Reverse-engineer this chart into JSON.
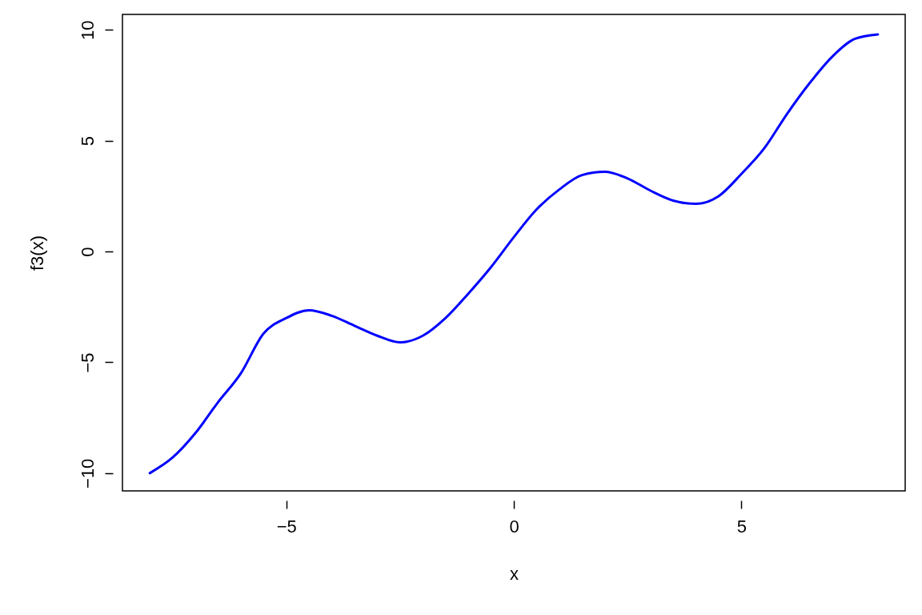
{
  "chart_data": {
    "type": "line",
    "xlabel": "x",
    "ylabel": "f3(x)",
    "x": [
      -8,
      -7.5,
      -7,
      -6.5,
      -6,
      -5.5,
      -5,
      -4.5,
      -4,
      -3.5,
      -3,
      -2.5,
      -2,
      -1.5,
      -1,
      -0.5,
      0,
      0.5,
      1,
      1.5,
      2,
      2.5,
      3,
      3.5,
      4,
      4.5,
      5,
      5.5,
      6,
      6.5,
      7,
      7.5,
      8
    ],
    "series": [
      {
        "color": "#0000ff",
        "values": [
          -10.0,
          -9.3,
          -8.2,
          -6.8,
          -5.5,
          -3.7,
          -3.0,
          -2.65,
          -2.9,
          -3.35,
          -3.8,
          -4.1,
          -3.8,
          -3.0,
          -1.9,
          -0.7,
          0.65,
          1.9,
          2.8,
          3.45,
          3.6,
          3.3,
          2.75,
          2.3,
          2.15,
          2.5,
          3.5,
          4.65,
          6.2,
          7.6,
          8.8,
          9.6,
          9.8
        ]
      }
    ],
    "xlim": [
      -8.6,
      8.6
    ],
    "ylim": [
      -10.8,
      10.7
    ],
    "xticks": [
      -5,
      0,
      5
    ],
    "yticks": [
      -10,
      -5,
      0,
      5,
      10
    ],
    "grid": false
  }
}
